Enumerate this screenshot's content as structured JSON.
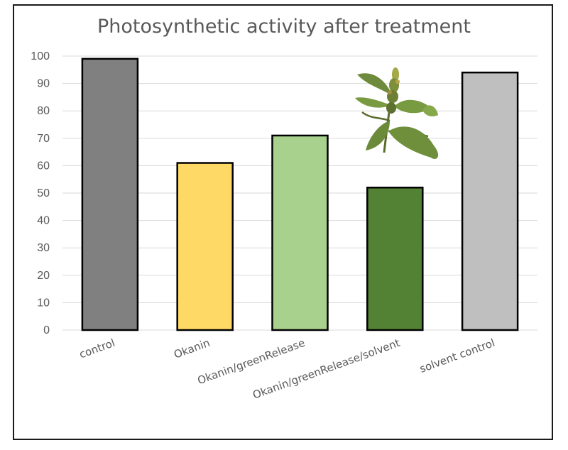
{
  "chart_data": {
    "type": "bar",
    "title": "Photosynthetic activity after treatment",
    "xlabel": "",
    "ylabel": "",
    "ylim": [
      0,
      100
    ],
    "yticks": [
      "0",
      "10",
      "20",
      "30",
      "40",
      "50",
      "60",
      "70",
      "80",
      "90",
      "100"
    ],
    "grid": true,
    "legend": "none",
    "categories": [
      "control",
      "Okanin",
      "Okanin/greenRelease",
      "Okanin/greenRelease/solvent",
      "solvent control"
    ],
    "values": [
      99,
      61,
      71,
      52,
      94
    ],
    "colors": [
      "#808080",
      "#ffd966",
      "#a9d18e",
      "#548235",
      "#bfbfbf"
    ],
    "bar_outline": "#000000",
    "decoration": "plant-icon"
  }
}
